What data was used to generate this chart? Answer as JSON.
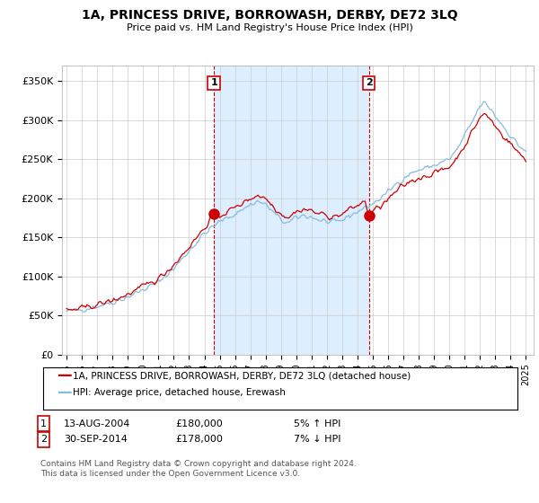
{
  "title": "1A, PRINCESS DRIVE, BORROWASH, DERBY, DE72 3LQ",
  "subtitle": "Price paid vs. HM Land Registry's House Price Index (HPI)",
  "ylabel_ticks": [
    "£0",
    "£50K",
    "£100K",
    "£150K",
    "£200K",
    "£250K",
    "£300K",
    "£350K"
  ],
  "ytick_vals": [
    0,
    50000,
    100000,
    150000,
    200000,
    250000,
    300000,
    350000
  ],
  "ylim": [
    0,
    370000
  ],
  "xlim_start": 1994.7,
  "xlim_end": 2025.5,
  "line1_color": "#cc0000",
  "line2_color": "#88bbdd",
  "shade_color": "#ddeeff",
  "marker1_date": 2004.62,
  "marker1_val": 180000,
  "marker2_date": 2014.75,
  "marker2_val": 178000,
  "annotation1_label": "1",
  "annotation2_label": "2",
  "legend_line1": "1A, PRINCESS DRIVE, BORROWASH, DERBY, DE72 3LQ (detached house)",
  "legend_line2": "HPI: Average price, detached house, Erewash",
  "table_row1": [
    "1",
    "13-AUG-2004",
    "£180,000",
    "5% ↑ HPI"
  ],
  "table_row2": [
    "2",
    "30-SEP-2014",
    "£178,000",
    "7% ↓ HPI"
  ],
  "footer": "Contains HM Land Registry data © Crown copyright and database right 2024.\nThis data is licensed under the Open Government Licence v3.0.",
  "background_color": "#ffffff",
  "grid_color": "#cccccc"
}
